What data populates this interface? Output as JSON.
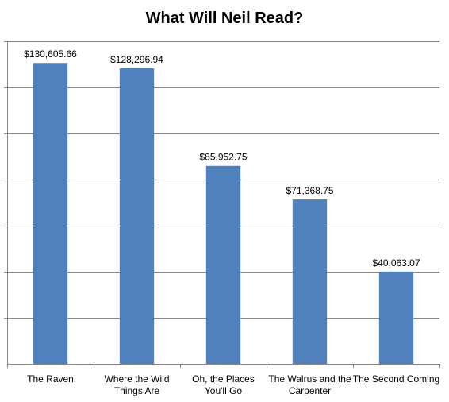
{
  "chart_data": {
    "type": "bar",
    "title": "What Will Neil Read?",
    "categories": [
      [
        "The Raven"
      ],
      [
        "Where the Wild",
        "Things Are"
      ],
      [
        "Oh, the Places",
        "You'll Go"
      ],
      [
        "The Walrus and the",
        "Carpenter"
      ],
      [
        "The Second Coming"
      ]
    ],
    "values": [
      130605.66,
      128296.94,
      85952.75,
      71368.75,
      40063.07
    ],
    "data_labels": [
      "$130,605.66",
      "$128,296.94",
      "$85,952.75",
      "$71,368.75",
      "$40,063.07"
    ],
    "xlabel": "",
    "ylabel": "",
    "ylim": [
      0,
      140000
    ],
    "y_tick_step": 20000,
    "y_tick_labels_shown": false,
    "grid": true,
    "legend": "none",
    "bar_color": "#4F81BD",
    "grid_color": "#868686"
  }
}
